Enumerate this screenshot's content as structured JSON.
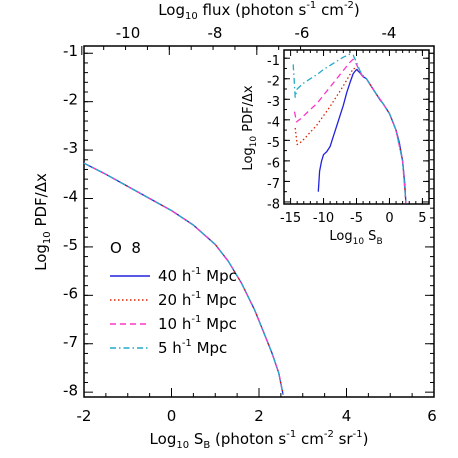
{
  "chart_data": [
    {
      "type": "line",
      "xlabel": "Log",
      "xlabel_sub": "10",
      "xlabel_rest": " S",
      "xlabel_sub2": "B",
      "xlabel_units": " (photon s",
      "xlabel_sup1": "-1",
      "xlabel_units2": " cm",
      "xlabel_sup2": "-2",
      "xlabel_units3": " sr",
      "xlabel_sup3": "-1",
      "xlabel_units4": ")",
      "x2label": "Log",
      "x2label_sub": "10",
      "x2label_rest": " flux (photon s",
      "x2label_sup1": "-1",
      "x2label_rest2": " cm",
      "x2label_sup2": "-2",
      "x2label_rest3": ")",
      "ylabel": "Log",
      "ylabel_sub": "10",
      "ylabel_rest": " PDF/Δx",
      "xlim": [
        -2,
        6
      ],
      "ylim": [
        -8.1,
        -0.85
      ],
      "xticks": [
        "-2",
        "0",
        "2",
        "4",
        "6"
      ],
      "yticks": [
        "-1",
        "-2",
        "-3",
        "-4",
        "-5",
        "-6",
        "-7",
        "-8"
      ],
      "x2ticks": [
        "-10",
        "-8",
        "-6",
        "-4"
      ],
      "x2_offset": 5.95,
      "legend_title": "O  8",
      "legend_placement": "bottom-left",
      "series": [
        {
          "name": "40 h",
          "name_sup": "-1",
          "name_rest": " Mpc",
          "color": "#2222dd",
          "dash": "solid",
          "x": [
            -2.0,
            -1.5,
            -1.0,
            -0.5,
            0.0,
            0.5,
            1.0,
            1.3,
            1.6,
            1.9,
            2.1,
            2.3,
            2.45,
            2.55
          ],
          "y": [
            -3.27,
            -3.5,
            -3.75,
            -4.0,
            -4.25,
            -4.55,
            -4.95,
            -5.3,
            -5.75,
            -6.3,
            -6.75,
            -7.2,
            -7.6,
            -8.05
          ]
        },
        {
          "name": "20 h",
          "name_sup": "-1",
          "name_rest": " Mpc",
          "color": "#dd2200",
          "dash": "1.5,2.5",
          "x": [
            -2.0,
            -1.5,
            -1.0,
            -0.5,
            0.0,
            0.5,
            1.0,
            1.3,
            1.6,
            1.9,
            2.1,
            2.3,
            2.45,
            2.55
          ],
          "y": [
            -3.27,
            -3.5,
            -3.75,
            -4.0,
            -4.25,
            -4.55,
            -4.95,
            -5.3,
            -5.75,
            -6.3,
            -6.75,
            -7.2,
            -7.6,
            -8.05
          ]
        },
        {
          "name": "10 h",
          "name_sup": "-1",
          "name_rest": " Mpc",
          "color": "#ff33cc",
          "dash": "6,4",
          "x": [
            -2.0,
            -1.5,
            -1.0,
            -0.5,
            0.0,
            0.5,
            1.0,
            1.3,
            1.6,
            1.9,
            2.1,
            2.3,
            2.45,
            2.55
          ],
          "y": [
            -3.27,
            -3.5,
            -3.75,
            -4.0,
            -4.25,
            -4.55,
            -4.95,
            -5.3,
            -5.75,
            -6.3,
            -6.75,
            -7.2,
            -7.6,
            -8.05
          ]
        },
        {
          "name": "5 h",
          "name_sup": "-1",
          "name_rest": " Mpc",
          "color": "#22aacc",
          "dash": "6,3,1.5,3",
          "x": [
            -2.0,
            -1.5,
            -1.0,
            -0.5,
            0.0,
            0.5,
            1.0,
            1.3,
            1.6,
            1.9,
            2.1,
            2.3,
            2.45,
            2.55
          ],
          "y": [
            -3.27,
            -3.5,
            -3.75,
            -4.0,
            -4.25,
            -4.55,
            -4.95,
            -5.3,
            -5.75,
            -6.3,
            -6.75,
            -7.2,
            -7.6,
            -8.05
          ]
        }
      ]
    },
    {
      "type": "line",
      "xlabel": "Log",
      "xlabel_sub": "10",
      "xlabel_rest": " S",
      "xlabel_sub2": "B",
      "ylabel": "Log",
      "ylabel_sub": "10",
      "ylabel_rest": " PDF/Δx",
      "xlim": [
        -16,
        6
      ],
      "ylim": [
        -8.1,
        -0.6
      ],
      "xticks": [
        "-15",
        "-10",
        "-5",
        "0",
        "5"
      ],
      "yticks": [
        "-1",
        "-2",
        "-3",
        "-4",
        "-5",
        "-6",
        "-7",
        "-8"
      ],
      "series": [
        {
          "color": "#2222dd",
          "dash": "solid",
          "x": [
            -10.8,
            -10.6,
            -10.3,
            -10.0,
            -9.5,
            -9.0,
            -8.5,
            -8.0,
            -7.5,
            -7.0,
            -6.5,
            -6.0,
            -5.5,
            -5.0,
            -4.5,
            -4.0,
            -3.5,
            -3.0,
            -2.5,
            -2.0,
            -1.5,
            -1.0,
            -0.5,
            0.0,
            0.5,
            1.0,
            1.5,
            2.0,
            2.3,
            2.5
          ],
          "y": [
            -7.5,
            -6.5,
            -6.0,
            -5.7,
            -5.55,
            -5.3,
            -4.8,
            -4.3,
            -3.8,
            -3.3,
            -2.7,
            -2.2,
            -1.75,
            -1.55,
            -1.7,
            -1.9,
            -2.0,
            -2.25,
            -2.5,
            -2.75,
            -3.0,
            -3.2,
            -3.45,
            -3.7,
            -4.1,
            -4.5,
            -5.1,
            -6.0,
            -7.0,
            -8.05
          ]
        },
        {
          "color": "#dd2200",
          "dash": "1.5,2.5",
          "x": [
            -14.3,
            -14.0,
            -13.5,
            -13.0,
            -12.0,
            -11.0,
            -10.0,
            -9.0,
            -8.0,
            -7.0,
            -6.0,
            -5.5,
            -5.0,
            -4.5,
            -4.0,
            -3.5,
            -3.0,
            -2.5,
            -2.0,
            -1.0,
            0.0,
            1.0,
            2.0,
            2.5
          ],
          "y": [
            -4.4,
            -5.2,
            -5.1,
            -4.95,
            -4.6,
            -4.25,
            -3.8,
            -3.35,
            -2.85,
            -2.35,
            -1.8,
            -1.5,
            -1.5,
            -1.7,
            -1.9,
            -2.0,
            -2.25,
            -2.5,
            -2.75,
            -3.2,
            -3.7,
            -4.5,
            -6.0,
            -8.05
          ]
        },
        {
          "color": "#ff33cc",
          "dash": "6,4",
          "x": [
            -14.4,
            -14.1,
            -13.5,
            -13.0,
            -12.0,
            -11.0,
            -10.0,
            -9.0,
            -8.0,
            -7.0,
            -6.0,
            -5.5,
            -5.0,
            -4.5,
            -4.0,
            -3.5,
            -3.0,
            -2.5,
            -2.0,
            -1.0,
            0.0,
            1.0,
            2.0,
            2.5
          ],
          "y": [
            -3.6,
            -4.1,
            -3.95,
            -3.8,
            -3.5,
            -3.2,
            -2.8,
            -2.4,
            -2.0,
            -1.6,
            -1.2,
            -1.05,
            -1.3,
            -1.65,
            -1.9,
            -2.0,
            -2.25,
            -2.5,
            -2.75,
            -3.2,
            -3.7,
            -4.5,
            -6.0,
            -8.05
          ]
        },
        {
          "color": "#22aacc",
          "dash": "6,3,1.5,3",
          "x": [
            -14.6,
            -14.3,
            -14.0,
            -13.5,
            -13.0,
            -12.0,
            -11.0,
            -10.0,
            -9.0,
            -8.0,
            -7.0,
            -6.0,
            -5.5,
            -5.0,
            -4.5,
            -4.0,
            -3.5,
            -3.0,
            -2.5,
            -2.0,
            -1.0,
            0.0,
            1.0,
            2.0,
            2.5
          ],
          "y": [
            -1.3,
            -2.9,
            -2.5,
            -2.35,
            -2.2,
            -2.0,
            -1.8,
            -1.55,
            -1.35,
            -1.15,
            -0.95,
            -0.8,
            -0.85,
            -1.2,
            -1.6,
            -1.85,
            -2.0,
            -2.25,
            -2.5,
            -2.75,
            -3.2,
            -3.7,
            -4.5,
            -6.0,
            -8.05
          ]
        }
      ]
    }
  ]
}
